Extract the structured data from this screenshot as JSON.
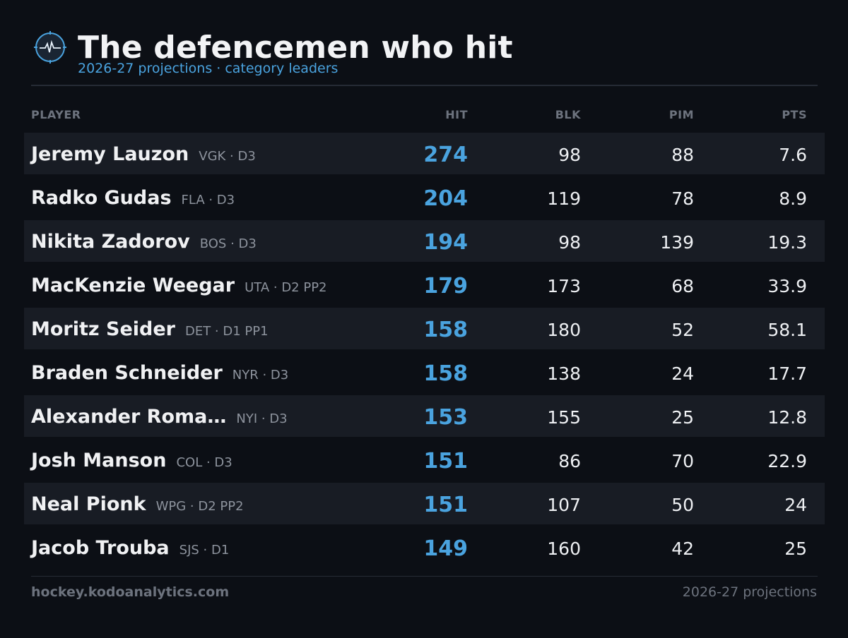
{
  "header": {
    "title": "The defencemen who hit",
    "subtitle": "2026-27 projections · category leaders",
    "logo_icon": "heartbeat-target-icon"
  },
  "columns": {
    "player": "PLAYER",
    "hit": "HIT",
    "blk": "BLK",
    "pim": "PIM",
    "pts": "PTS"
  },
  "rows": [
    {
      "name": "Jeremy Lauzon",
      "meta": "VGK · D3",
      "hit": "274",
      "blk": "98",
      "pim": "88",
      "pts": "7.6"
    },
    {
      "name": "Radko Gudas",
      "meta": "FLA · D3",
      "hit": "204",
      "blk": "119",
      "pim": "78",
      "pts": "8.9"
    },
    {
      "name": "Nikita Zadorov",
      "meta": "BOS · D3",
      "hit": "194",
      "blk": "98",
      "pim": "139",
      "pts": "19.3"
    },
    {
      "name": "MacKenzie Weegar",
      "meta": "UTA · D2 PP2",
      "hit": "179",
      "blk": "173",
      "pim": "68",
      "pts": "33.9"
    },
    {
      "name": "Moritz Seider",
      "meta": "DET · D1 PP1",
      "hit": "158",
      "blk": "180",
      "pim": "52",
      "pts": "58.1"
    },
    {
      "name": "Braden Schneider",
      "meta": "NYR · D3",
      "hit": "158",
      "blk": "138",
      "pim": "24",
      "pts": "17.7"
    },
    {
      "name": "Alexander Roma…",
      "meta": "NYI · D3",
      "hit": "153",
      "blk": "155",
      "pim": "25",
      "pts": "12.8"
    },
    {
      "name": "Josh Manson",
      "meta": "COL · D3",
      "hit": "151",
      "blk": "86",
      "pim": "70",
      "pts": "22.9"
    },
    {
      "name": "Neal Pionk",
      "meta": "WPG · D2 PP2",
      "hit": "151",
      "blk": "107",
      "pim": "50",
      "pts": "24"
    },
    {
      "name": "Jacob Trouba",
      "meta": "SJS · D1",
      "hit": "149",
      "blk": "160",
      "pim": "42",
      "pts": "25"
    }
  ],
  "footer": {
    "site": "hockey.kodoanalytics.com",
    "note": "2026-27 projections"
  },
  "colors": {
    "background": "#0c0f15",
    "accent": "#4aa3df",
    "row_alt": "#181c24",
    "muted": "#6d737e"
  }
}
